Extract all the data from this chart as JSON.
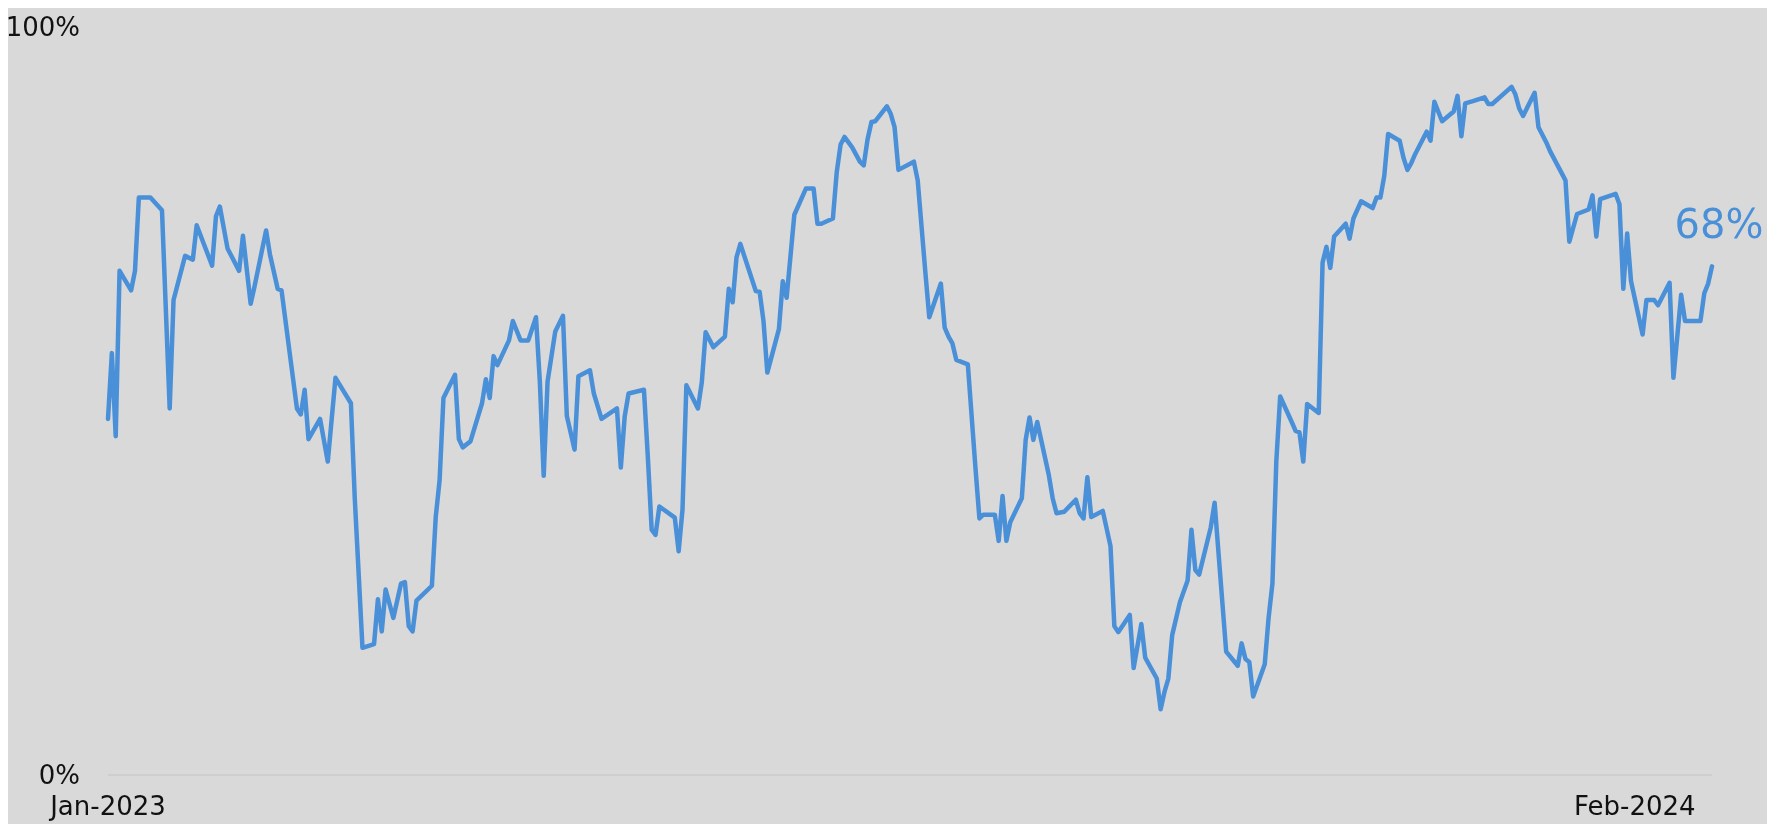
{
  "chart_data": {
    "type": "line",
    "x": [
      "2023-01-01",
      "2023-01-02",
      "2023-01-03",
      "2023-01-04",
      "2023-01-07",
      "2023-01-08",
      "2023-01-09",
      "2023-01-12",
      "2023-01-15",
      "2023-01-17",
      "2023-01-18",
      "2023-01-21",
      "2023-01-23",
      "2023-01-24",
      "2023-01-28",
      "2023-01-29",
      "2023-01-30",
      "2023-02-01",
      "2023-02-04",
      "2023-02-05",
      "2023-02-07",
      "2023-02-08",
      "2023-02-11",
      "2023-02-12",
      "2023-02-14",
      "2023-02-15",
      "2023-02-19",
      "2023-02-20",
      "2023-02-21",
      "2023-02-22",
      "2023-02-25",
      "2023-02-27",
      "2023-03-01",
      "2023-03-05",
      "2023-03-06",
      "2023-03-08",
      "2023-03-11",
      "2023-03-12",
      "2023-03-13",
      "2023-03-14",
      "2023-03-16",
      "2023-03-18",
      "2023-03-19",
      "2023-03-20",
      "2023-03-21",
      "2023-03-22",
      "2023-03-26",
      "2023-03-27",
      "2023-03-28",
      "2023-03-29",
      "2023-04-01",
      "2023-04-02",
      "2023-04-03",
      "2023-04-05",
      "2023-04-08",
      "2023-04-09",
      "2023-04-10",
      "2023-04-11",
      "2023-04-12",
      "2023-04-15",
      "2023-04-16",
      "2023-04-18",
      "2023-04-20",
      "2023-04-22",
      "2023-04-23",
      "2023-04-24",
      "2023-04-25",
      "2023-04-27",
      "2023-04-29",
      "2023-04-30",
      "2023-05-02",
      "2023-05-03",
      "2023-05-06",
      "2023-05-07",
      "2023-05-09",
      "2023-05-13",
      "2023-05-14",
      "2023-05-15",
      "2023-05-16",
      "2023-05-20",
      "2023-05-21",
      "2023-05-22",
      "2023-05-23",
      "2023-05-24",
      "2023-05-28",
      "2023-05-29",
      "2023-05-30",
      "2023-05-31",
      "2023-06-03",
      "2023-06-04",
      "2023-06-05",
      "2023-06-07",
      "2023-06-10",
      "2023-06-11",
      "2023-06-12",
      "2023-06-13",
      "2023-06-14",
      "2023-06-18",
      "2023-06-19",
      "2023-06-20",
      "2023-06-21",
      "2023-06-24",
      "2023-06-25",
      "2023-06-26",
      "2023-06-28",
      "2023-07-01",
      "2023-07-03",
      "2023-07-04",
      "2023-07-05",
      "2023-07-08",
      "2023-07-09",
      "2023-07-10",
      "2023-07-11",
      "2023-07-13",
      "2023-07-15",
      "2023-07-16",
      "2023-07-17",
      "2023-07-18",
      "2023-07-19",
      "2023-07-22",
      "2023-07-23",
      "2023-07-24",
      "2023-07-25",
      "2023-07-29",
      "2023-07-30",
      "2023-08-01",
      "2023-08-02",
      "2023-08-05",
      "2023-08-06",
      "2023-08-07",
      "2023-08-08",
      "2023-08-09",
      "2023-08-12",
      "2023-08-14",
      "2023-08-15",
      "2023-08-16",
      "2023-08-19",
      "2023-08-20",
      "2023-08-21",
      "2023-08-22",
      "2023-08-23",
      "2023-08-26",
      "2023-08-27",
      "2023-08-28",
      "2023-08-29",
      "2023-08-30",
      "2023-09-02",
      "2023-09-03",
      "2023-09-04",
      "2023-09-06",
      "2023-09-09",
      "2023-09-10",
      "2023-09-11",
      "2023-09-12",
      "2023-09-13",
      "2023-09-16",
      "2023-09-18",
      "2023-09-19",
      "2023-09-20",
      "2023-09-23",
      "2023-09-24",
      "2023-09-26",
      "2023-09-27",
      "2023-09-30",
      "2023-10-01",
      "2023-10-02",
      "2023-10-03",
      "2023-10-04",
      "2023-10-06",
      "2023-10-08",
      "2023-10-09",
      "2023-10-10",
      "2023-10-11",
      "2023-10-14",
      "2023-10-15",
      "2023-10-18",
      "2023-10-21",
      "2023-10-22",
      "2023-10-23",
      "2023-10-24",
      "2023-10-25",
      "2023-10-28",
      "2023-10-29",
      "2023-10-30",
      "2023-10-31",
      "2023-11-01",
      "2023-11-04",
      "2023-11-05",
      "2023-11-06",
      "2023-11-07",
      "2023-11-08",
      "2023-11-11",
      "2023-11-12",
      "2023-11-13",
      "2023-11-14",
      "2023-11-15",
      "2023-11-18",
      "2023-11-19",
      "2023-11-20",
      "2023-11-22",
      "2023-11-25",
      "2023-11-26",
      "2023-11-27",
      "2023-11-28",
      "2023-11-29",
      "2023-12-02",
      "2023-12-03",
      "2023-12-04",
      "2023-12-05",
      "2023-12-06",
      "2023-12-09",
      "2023-12-10",
      "2023-12-11",
      "2023-12-13",
      "2023-12-16",
      "2023-12-17",
      "2023-12-18",
      "2023-12-19",
      "2023-12-21",
      "2023-12-24",
      "2023-12-25",
      "2023-12-26",
      "2023-12-31",
      "2024-01-01",
      "2024-01-02",
      "2024-01-03",
      "2024-01-06",
      "2024-01-07",
      "2024-01-09",
      "2024-01-10",
      "2024-01-14",
      "2024-01-15",
      "2024-01-17",
      "2024-01-20",
      "2024-01-21",
      "2024-01-22",
      "2024-01-23",
      "2024-01-27",
      "2024-01-28",
      "2024-01-29",
      "2024-01-30",
      "2024-01-31",
      "2024-02-03",
      "2024-02-04",
      "2024-02-06",
      "2024-02-07",
      "2024-02-10",
      "2024-02-11",
      "2024-02-13",
      "2024-02-14",
      "2024-02-18",
      "2024-02-19",
      "2024-02-20",
      "2024-02-21"
    ],
    "series": [
      {
        "color": "#4a90d9",
        "values": [
          47.6,
          56.4,
          45.3,
          67.4,
          64.8,
          67.4,
          77.2,
          77.2,
          75.5,
          49.0,
          63.5,
          69.4,
          68.9,
          73.5,
          68.1,
          74.7,
          76.0,
          70.4,
          67.4,
          72.1,
          63.0,
          65.3,
          72.8,
          69.6,
          65.0,
          64.8,
          49.0,
          48.2,
          51.5,
          44.9,
          47.6,
          41.9,
          53.1,
          49.7,
          37.0,
          17.0,
          17.5,
          23.5,
          19.2,
          24.8,
          21.0,
          25.6,
          25.8,
          19.9,
          19.2,
          23.3,
          25.3,
          34.5,
          39.4,
          50.4,
          53.5,
          44.9,
          43.8,
          44.6,
          49.7,
          52.9,
          50.4,
          56.0,
          54.8,
          58.1,
          60.7,
          58.1,
          58.1,
          61.2,
          52.6,
          40.0,
          52.6,
          59.3,
          61.4,
          48.0,
          43.5,
          53.3,
          54.1,
          51.0,
          47.6,
          49.0,
          41.1,
          47.9,
          51.0,
          51.5,
          42.6,
          32.8,
          32.1,
          35.9,
          34.4,
          29.9,
          35.5,
          52.1,
          49.0,
          52.5,
          59.2,
          57.2,
          58.6,
          65.0,
          63.2,
          69.2,
          71.0,
          64.7,
          64.6,
          60.7,
          53.8,
          59.6,
          66.0,
          63.8,
          74.9,
          78.4,
          78.4,
          73.7,
          73.7,
          74.4,
          80.6,
          84.3,
          85.3,
          83.9,
          82.0,
          81.5,
          85.0,
          87.3,
          87.4,
          89.4,
          88.4,
          86.6,
          80.9,
          82.0,
          79.5,
          67.1,
          61.2,
          65.7,
          59.8,
          58.6,
          57.7,
          55.5,
          54.9,
          40.9,
          34.3,
          34.8,
          34.8,
          31.3,
          37.3,
          31.3,
          33.8,
          37.0,
          44.8,
          47.8,
          44.8,
          47.2,
          40.1,
          37.0,
          35.0,
          35.2,
          36.8,
          35.0,
          34.3,
          39.8,
          34.5,
          35.3,
          30.6,
          19.9,
          19.1,
          21.4,
          14.3,
          20.2,
          15.7,
          12.9,
          8.8,
          11.1,
          12.9,
          18.7,
          23.1,
          26.0,
          32.8,
          27.4,
          26.8,
          33.1,
          36.4,
          16.5,
          14.6,
          17.6,
          15.5,
          15.1,
          10.5,
          14.8,
          21.0,
          25.6,
          41.9,
          50.6,
          47.2,
          46.0,
          45.8,
          41.9,
          49.6,
          48.4,
          68.5,
          70.6,
          67.8,
          72.0,
          73.7,
          71.7,
          74.4,
          76.7,
          75.8,
          77.2,
          77.2,
          80.1,
          85.7,
          84.8,
          82.5,
          80.9,
          81.8,
          83.0,
          86.0,
          84.8,
          90.0,
          87.4,
          88.7,
          90.8,
          85.4,
          89.8,
          90.1,
          90.6,
          89.7,
          89.7,
          92.0,
          91.0,
          89.1,
          88.1,
          91.2,
          86.6,
          84.6,
          83.4,
          79.5,
          71.3,
          75.0,
          75.6,
          77.5,
          72.0,
          77.0,
          77.7,
          76.3,
          65.0,
          72.4,
          66.0,
          58.9,
          63.5,
          63.5,
          62.8,
          65.8,
          53.1,
          64.2,
          60.7,
          60.7,
          64.4,
          65.7,
          68
        ]
      }
    ],
    "xlim": [
      "2023-01-01",
      "2024-02-21"
    ],
    "xticks": [
      {
        "value": "2023-01-01",
        "label": "Jan-2023"
      },
      {
        "value": "2024-02-01",
        "label": "Feb-2024"
      }
    ],
    "ylim": [
      0,
      100
    ],
    "yticks": [
      {
        "value": 0,
        "label": "0%"
      },
      {
        "value": 100,
        "label": "100%"
      }
    ],
    "annotations": [
      {
        "text": "68%",
        "x": "2024-02-21",
        "y": 68
      }
    ]
  }
}
